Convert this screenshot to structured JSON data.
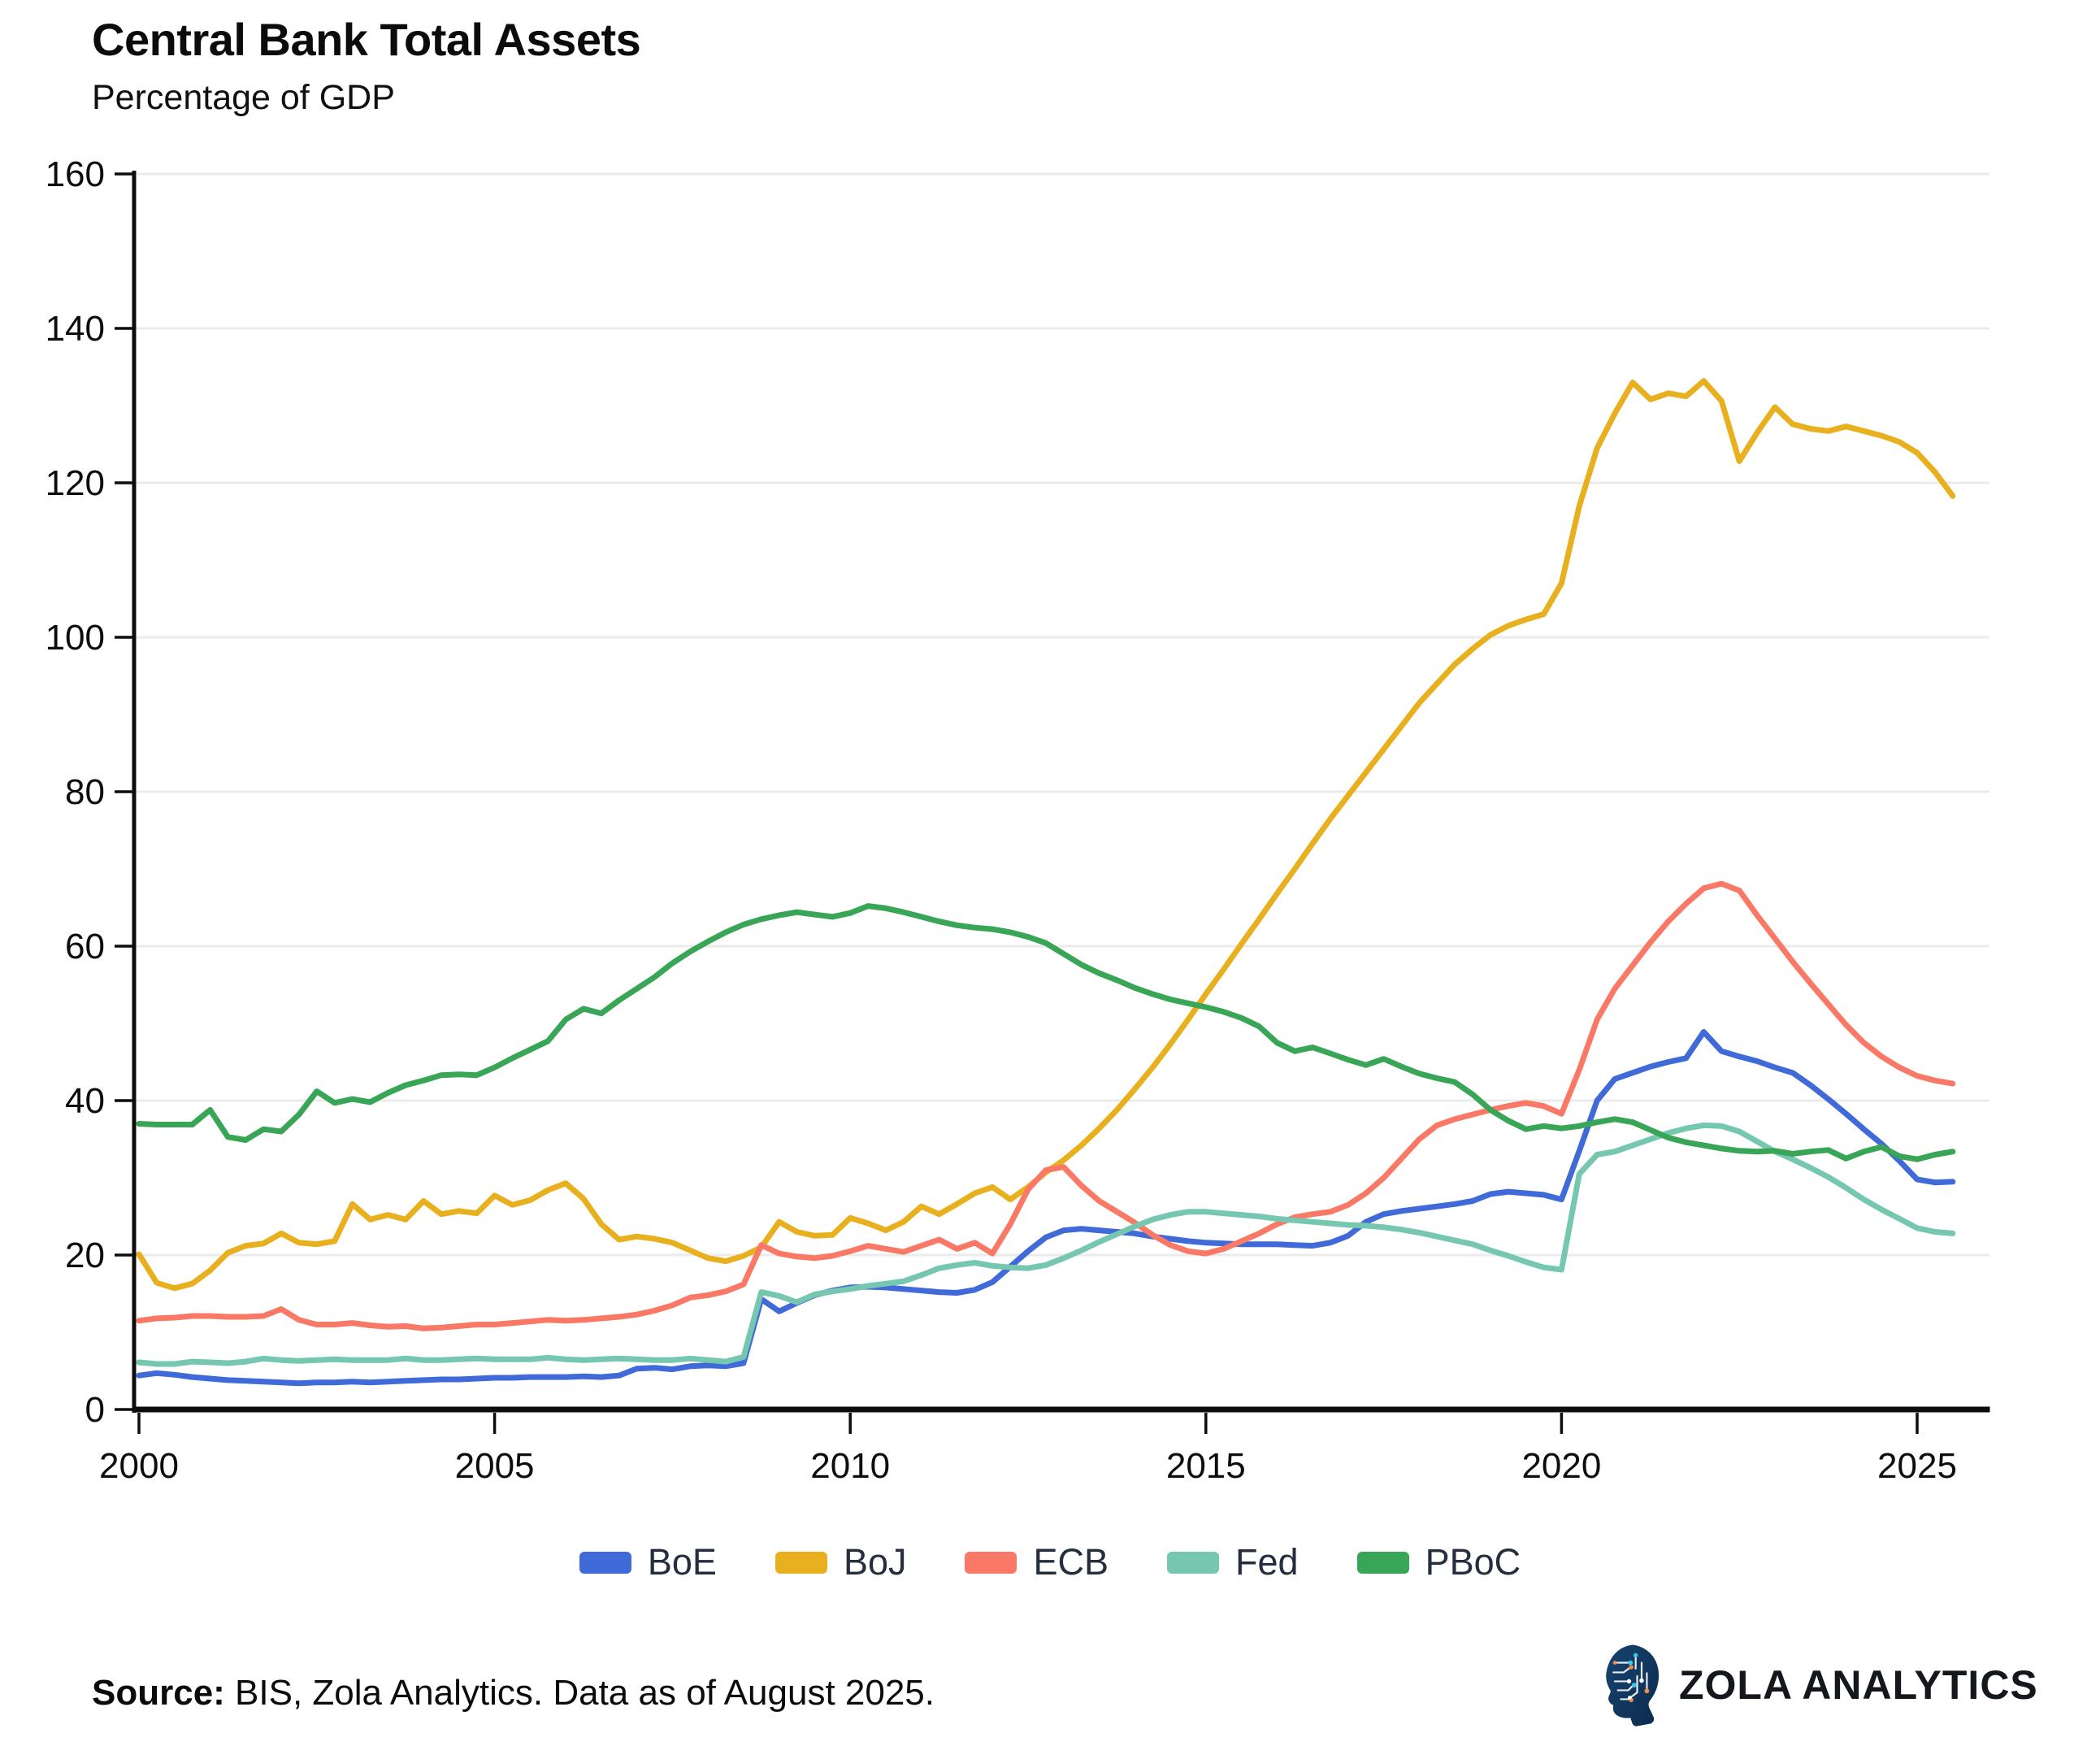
{
  "title": "Central Bank Total Assets",
  "subtitle": "Percentage of GDP",
  "footer": {
    "source_label": "Source:",
    "source_text": " BIS, Zola Analytics. Data as of August 2025.",
    "brand_name": "ZOLA ANALYTICS",
    "brand_icon": "circuit-head-icon",
    "brand_icon_colors": {
      "head": "#123a63",
      "head_dark": "#0c2b4d",
      "trace": "#ffffff",
      "dot_cyan": "#3cc5e8",
      "dot_orange": "#ef8a4e"
    }
  },
  "chart_data": {
    "type": "line",
    "title": "Central Bank Total Assets",
    "subtitle": "Percentage of GDP",
    "xlabel": "",
    "ylabel": "",
    "ylim": [
      0,
      160
    ],
    "xlim": [
      2000,
      2026.1
    ],
    "grid": "horizontal-only",
    "grid_color": "#ebebeb",
    "axis_color": "#0d0d0d",
    "tick_label_color": "#0d0d0d",
    "legend_position": "bottom",
    "y_ticks": [
      0,
      20,
      40,
      60,
      80,
      100,
      120,
      140,
      160
    ],
    "x_ticks": [
      2000,
      2005,
      2010,
      2015,
      2020,
      2025
    ],
    "x_start": 2000.0,
    "x_step": 0.25,
    "series": [
      {
        "name": "BoE",
        "color": "#3f6ad8",
        "values": [
          4.4,
          4.7,
          4.5,
          4.2,
          4.0,
          3.8,
          3.7,
          3.6,
          3.5,
          3.4,
          3.5,
          3.5,
          3.6,
          3.5,
          3.6,
          3.7,
          3.8,
          3.9,
          3.9,
          4.0,
          4.1,
          4.1,
          4.2,
          4.2,
          4.2,
          4.3,
          4.2,
          4.4,
          5.3,
          5.4,
          5.2,
          5.6,
          5.7,
          5.6,
          6.0,
          14.3,
          12.7,
          13.8,
          14.8,
          15.4,
          15.8,
          15.9,
          15.8,
          15.6,
          15.4,
          15.2,
          15.1,
          15.5,
          16.5,
          18.5,
          20.5,
          22.3,
          23.2,
          23.4,
          23.2,
          23.0,
          22.8,
          22.4,
          22.1,
          21.8,
          21.6,
          21.5,
          21.4,
          21.4,
          21.4,
          21.3,
          21.2,
          21.6,
          22.5,
          24.3,
          25.3,
          25.7,
          26.0,
          26.3,
          26.6,
          27.0,
          27.9,
          28.2,
          28.0,
          27.8,
          27.2,
          33.5,
          40.0,
          42.8,
          43.6,
          44.4,
          45.0,
          45.5,
          48.9,
          46.4,
          45.7,
          45.1,
          44.3,
          43.6,
          42.0,
          40.2,
          38.3,
          36.3,
          34.4,
          32.2,
          29.8,
          29.4,
          29.5
        ]
      },
      {
        "name": "BoJ",
        "color": "#e8b01e",
        "values": [
          20.1,
          16.4,
          15.7,
          16.3,
          18.0,
          20.3,
          21.2,
          21.5,
          22.8,
          21.6,
          21.4,
          21.8,
          26.6,
          24.6,
          25.2,
          24.6,
          27.0,
          25.3,
          25.7,
          25.4,
          27.7,
          26.5,
          27.1,
          28.4,
          29.3,
          27.3,
          24.0,
          22.0,
          22.4,
          22.1,
          21.6,
          20.6,
          19.6,
          19.2,
          19.9,
          21.0,
          24.3,
          23.0,
          22.5,
          22.6,
          24.8,
          24.1,
          23.2,
          24.3,
          26.3,
          25.3,
          26.6,
          28.0,
          28.8,
          27.2,
          28.8,
          30.7,
          32.3,
          34.2,
          36.4,
          38.8,
          41.5,
          44.3,
          47.3,
          50.5,
          53.8,
          57.0,
          60.3,
          63.5,
          66.8,
          70.0,
          73.3,
          76.5,
          79.5,
          82.5,
          85.5,
          88.5,
          91.5,
          94.0,
          96.5,
          98.5,
          100.3,
          101.5,
          102.3,
          103.0,
          107.0,
          117.0,
          124.5,
          129.0,
          133.0,
          130.8,
          131.6,
          131.2,
          133.2,
          130.6,
          122.8,
          126.5,
          129.8,
          127.6,
          127.0,
          126.7,
          127.3,
          126.7,
          126.1,
          125.3,
          123.9,
          121.4,
          118.3
        ]
      },
      {
        "name": "ECB",
        "color": "#fa7866",
        "values": [
          11.5,
          11.8,
          11.9,
          12.1,
          12.1,
          12.0,
          12.0,
          12.1,
          13.0,
          11.6,
          11.0,
          11.0,
          11.2,
          10.9,
          10.7,
          10.8,
          10.5,
          10.6,
          10.8,
          11.0,
          11.0,
          11.2,
          11.4,
          11.6,
          11.5,
          11.6,
          11.8,
          12.0,
          12.3,
          12.8,
          13.5,
          14.5,
          14.8,
          15.3,
          16.2,
          21.3,
          20.2,
          19.8,
          19.6,
          19.9,
          20.5,
          21.2,
          20.8,
          20.4,
          21.2,
          22.0,
          20.8,
          21.6,
          20.2,
          24.0,
          28.5,
          31.0,
          31.4,
          29.0,
          27.0,
          25.6,
          24.2,
          22.6,
          21.3,
          20.5,
          20.2,
          20.8,
          21.8,
          22.8,
          24.0,
          24.9,
          25.3,
          25.6,
          26.5,
          28.0,
          30.0,
          32.5,
          35.0,
          36.8,
          37.6,
          38.2,
          38.8,
          39.3,
          39.7,
          39.3,
          38.3,
          44.0,
          50.5,
          54.5,
          57.5,
          60.5,
          63.2,
          65.5,
          67.5,
          68.1,
          67.2,
          64.0,
          61.0,
          58.0,
          55.2,
          52.5,
          49.8,
          47.5,
          45.7,
          44.3,
          43.2,
          42.6,
          42.2
        ]
      },
      {
        "name": "Fed",
        "color": "#76c7b0",
        "values": [
          6.1,
          5.9,
          5.9,
          6.2,
          6.1,
          6.0,
          6.2,
          6.6,
          6.4,
          6.3,
          6.4,
          6.5,
          6.4,
          6.4,
          6.4,
          6.6,
          6.4,
          6.4,
          6.5,
          6.6,
          6.5,
          6.5,
          6.5,
          6.7,
          6.5,
          6.4,
          6.5,
          6.6,
          6.5,
          6.4,
          6.4,
          6.6,
          6.4,
          6.2,
          6.8,
          15.2,
          14.7,
          13.9,
          14.9,
          15.3,
          15.6,
          16.0,
          16.3,
          16.6,
          17.4,
          18.3,
          18.7,
          19.0,
          18.6,
          18.4,
          18.3,
          18.7,
          19.6,
          20.6,
          21.7,
          22.7,
          23.7,
          24.6,
          25.2,
          25.6,
          25.6,
          25.4,
          25.2,
          25.0,
          24.7,
          24.5,
          24.3,
          24.1,
          23.9,
          23.8,
          23.6,
          23.3,
          22.9,
          22.4,
          21.9,
          21.4,
          20.6,
          19.9,
          19.1,
          18.4,
          18.1,
          30.5,
          33.0,
          33.4,
          34.2,
          35.0,
          35.8,
          36.4,
          36.8,
          36.7,
          36.0,
          34.7,
          33.4,
          32.4,
          31.3,
          30.1,
          28.7,
          27.2,
          25.9,
          24.7,
          23.5,
          23.0,
          22.8
        ]
      },
      {
        "name": "PBoC",
        "color": "#39a556",
        "values": [
          37.0,
          36.9,
          36.9,
          36.9,
          38.8,
          35.3,
          34.9,
          36.3,
          36.0,
          38.2,
          41.2,
          39.7,
          40.2,
          39.8,
          41.0,
          42.0,
          42.6,
          43.3,
          43.4,
          43.3,
          44.3,
          45.5,
          46.6,
          47.7,
          50.5,
          51.9,
          51.3,
          53.0,
          54.5,
          56.0,
          57.8,
          59.3,
          60.6,
          61.8,
          62.8,
          63.5,
          64.0,
          64.4,
          64.1,
          63.8,
          64.3,
          65.2,
          64.9,
          64.4,
          63.8,
          63.2,
          62.7,
          62.4,
          62.2,
          61.8,
          61.2,
          60.4,
          59.0,
          57.6,
          56.5,
          55.6,
          54.6,
          53.8,
          53.1,
          52.6,
          52.1,
          51.5,
          50.7,
          49.6,
          47.5,
          46.4,
          46.9,
          46.1,
          45.3,
          44.6,
          45.4,
          44.4,
          43.5,
          42.9,
          42.4,
          40.8,
          38.8,
          37.4,
          36.3,
          36.7,
          36.4,
          36.7,
          37.2,
          37.6,
          37.2,
          36.2,
          35.2,
          34.6,
          34.2,
          33.8,
          33.5,
          33.4,
          33.5,
          33.1,
          33.4,
          33.6,
          32.5,
          33.4,
          34.0,
          32.8,
          32.4,
          33.0,
          33.4
        ]
      }
    ]
  }
}
